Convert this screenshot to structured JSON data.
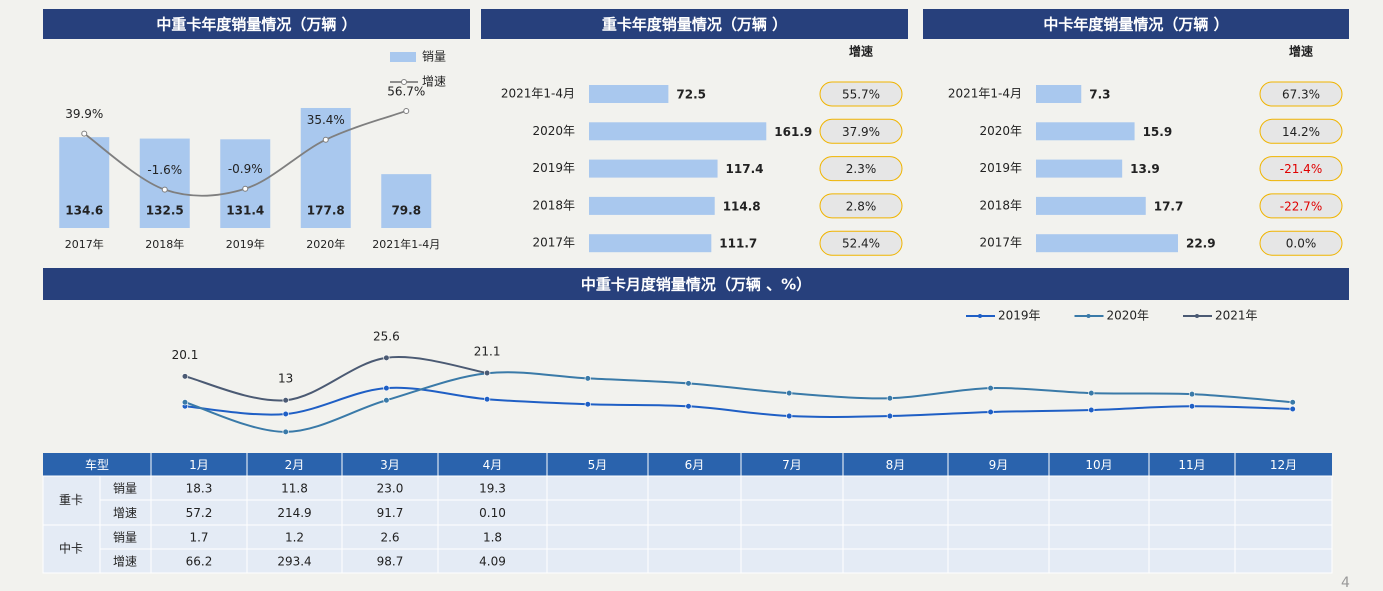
{
  "chart_data": [
    {
      "type": "bar",
      "title": "中重卡年度销量情况（万辆 ）",
      "categories": [
        "2017年",
        "2018年",
        "2019年",
        "2020年",
        "2021年1-4月"
      ],
      "series": [
        {
          "name": "销量",
          "color": "#a9c8ee",
          "values": [
            134.6,
            132.5,
            131.4,
            177.8,
            79.8
          ]
        },
        {
          "name": "增速",
          "color": "#7f7f7f",
          "axis": "y2",
          "values": [
            39.9,
            -1.6,
            -0.9,
            35.4,
            56.7
          ],
          "value_labels": [
            "39.9%",
            "-1.6%",
            "-0.9%",
            "35.4%",
            "56.7%"
          ]
        }
      ],
      "ylim": [
        0,
        200
      ],
      "y2lim": [
        -30,
        70
      ]
    },
    {
      "type": "barh",
      "title": "重卡年度销量情况（万辆 ）",
      "categories": [
        "2021年1-4月",
        "2020年",
        "2019年",
        "2018年",
        "2017年"
      ],
      "values": [
        72.5,
        161.9,
        117.4,
        114.8,
        111.7
      ],
      "color": "#a9c8ee",
      "xlim": [
        0,
        200
      ],
      "growth": {
        "label": "增速",
        "values": [
          55.7,
          37.9,
          2.3,
          2.8,
          52.4
        ],
        "value_labels": [
          "55.7%",
          "37.9%",
          "2.3%",
          "2.8%",
          "52.4%"
        ],
        "negative_color": "#e00000"
      }
    },
    {
      "type": "barh",
      "title": "中卡年度销量情况（万辆 ）",
      "categories": [
        "2021年1-4月",
        "2020年",
        "2019年",
        "2018年",
        "2017年"
      ],
      "values": [
        7.3,
        15.9,
        13.9,
        17.7,
        22.9
      ],
      "color": "#a9c8ee",
      "xlim": [
        0,
        30
      ],
      "growth": {
        "label": "增速",
        "values": [
          67.3,
          14.2,
          -21.4,
          -22.7,
          0
        ],
        "value_labels": [
          "67.3%",
          "14.2%",
          "-21.4%",
          "-22.7%",
          "0.0%"
        ],
        "negative_color": "#e00000"
      }
    },
    {
      "type": "line",
      "title": "中重卡月度销量情况（万辆 、%）",
      "categories": [
        "1月",
        "2月",
        "3月",
        "4月",
        "5月",
        "6月",
        "7月",
        "8月",
        "9月",
        "10月",
        "11月",
        "12月"
      ],
      "series": [
        {
          "name": "2019年",
          "color": "#1f5fc5",
          "values": [
            11.2,
            8.9,
            16.6,
            13.3,
            11.8,
            11.2,
            8.3,
            8.3,
            9.5,
            10.1,
            11.2,
            10.4
          ]
        },
        {
          "name": "2020年",
          "color": "#3a7aa8",
          "values": [
            12.4,
            3.6,
            13.0,
            21.0,
            19.5,
            18.0,
            15.1,
            13.6,
            16.6,
            15.1,
            14.8,
            12.4
          ]
        },
        {
          "name": "2021年",
          "color": "#4b5a73",
          "values": [
            20.1,
            13.0,
            25.6,
            21.1,
            null,
            null,
            null,
            null,
            null,
            null,
            null,
            null
          ],
          "show_labels": true
        }
      ],
      "ylim": [
        0,
        30
      ]
    }
  ],
  "table": {
    "header": [
      "车型",
      "1月",
      "2月",
      "3月",
      "4月",
      "5月",
      "6月",
      "7月",
      "8月",
      "9月",
      "10月",
      "11月",
      "12月"
    ],
    "groups": [
      {
        "name": "重卡",
        "rows": [
          {
            "label": "销量",
            "cells": [
              "18.3",
              "11.8",
              "23.0",
              "19.3"
            ]
          },
          {
            "label": "增速",
            "cells": [
              "57.2",
              "214.9",
              "91.7",
              "0.10"
            ]
          }
        ]
      },
      {
        "name": "中卡",
        "rows": [
          {
            "label": "销量",
            "cells": [
              "1.7",
              "1.2",
              "2.6",
              "1.8"
            ]
          },
          {
            "label": "增速",
            "cells": [
              "66.2",
              "293.4",
              "98.7",
              "4.09"
            ]
          }
        ]
      }
    ]
  },
  "page_number": "4"
}
